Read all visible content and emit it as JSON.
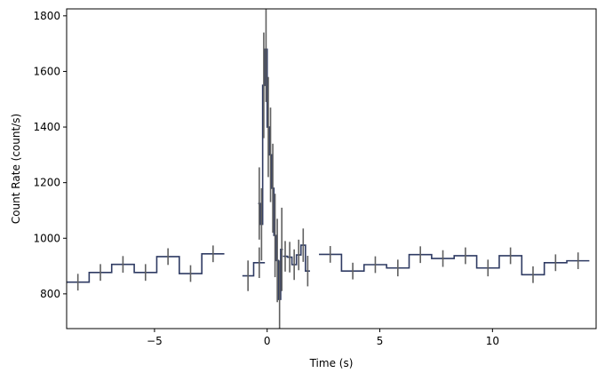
{
  "chart_data": {
    "type": "step",
    "xlabel": "Time (s)",
    "ylabel": "Count Rate (count/s)",
    "xlim": [
      -8.9,
      14.6
    ],
    "ylim": [
      675,
      1825
    ],
    "xticks": [
      -5,
      0,
      5,
      10
    ],
    "xtick_labels": [
      "−5",
      "0",
      "5",
      "10"
    ],
    "yticks": [
      800,
      1000,
      1200,
      1400,
      1600,
      1800
    ],
    "ytick_labels": [
      "800",
      "1000",
      "1200",
      "1400",
      "1600",
      "1800"
    ],
    "grid": false,
    "colors": {
      "line": "#2f3b63",
      "errorbar": "#606060",
      "axes": "#000000"
    },
    "segments": [
      {
        "bin_width": 1.0,
        "bins": [
          [
            -8.9,
            842,
            30
          ],
          [
            -7.9,
            877,
            30
          ],
          [
            -6.9,
            906,
            30
          ],
          [
            -5.9,
            877,
            30
          ],
          [
            -4.9,
            934,
            30
          ],
          [
            -3.9,
            873,
            30
          ],
          [
            -2.9,
            944,
            30
          ]
        ]
      },
      {
        "bin_width": 0.5,
        "bins": [
          [
            -1.1,
            865,
            55
          ],
          [
            -0.6,
            912,
            55
          ]
        ]
      },
      {
        "bin_width": 0.1,
        "bins": [
          [
            -0.4,
            1125,
            130
          ],
          [
            -0.3,
            1050,
            130
          ],
          [
            -0.2,
            1550,
            190
          ],
          [
            -0.1,
            1680,
            190
          ],
          [
            0.0,
            1400,
            180
          ],
          [
            0.1,
            1300,
            170
          ],
          [
            0.2,
            1180,
            160
          ],
          [
            0.3,
            1010,
            150
          ],
          [
            0.4,
            920,
            150
          ],
          [
            0.5,
            780,
            140
          ],
          [
            0.6,
            960,
            150
          ]
        ]
      },
      {
        "bin_width": 0.2,
        "bins": [
          [
            0.7,
            935,
            55
          ],
          [
            0.9,
            932,
            55
          ],
          [
            1.1,
            905,
            55
          ],
          [
            1.3,
            940,
            55
          ],
          [
            1.5,
            975,
            60
          ],
          [
            1.7,
            882,
            55
          ]
        ]
      },
      {
        "bin_width": 1.0,
        "bins": [
          [
            2.3,
            942,
            30
          ],
          [
            3.3,
            882,
            30
          ],
          [
            4.3,
            905,
            30
          ],
          [
            5.3,
            893,
            30
          ],
          [
            6.3,
            941,
            30
          ],
          [
            7.3,
            927,
            30
          ],
          [
            8.3,
            937,
            30
          ],
          [
            9.3,
            893,
            30
          ],
          [
            10.3,
            937,
            30
          ],
          [
            11.3,
            869,
            30
          ],
          [
            12.3,
            912,
            30
          ],
          [
            13.3,
            919,
            30
          ]
        ]
      }
    ]
  }
}
